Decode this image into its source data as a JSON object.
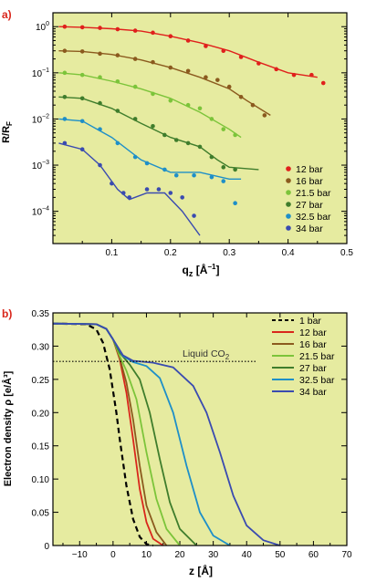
{
  "panels": [
    {
      "panel_label": "a)",
      "chart_data": {
        "type": "scatter",
        "xlabel": "q_z [Å⁻¹]",
        "ylabel": "R/R_F",
        "xlim": [
          0,
          0.5
        ],
        "ylim_log": [
          2e-05,
          2
        ],
        "yscale": "log",
        "x_ticks": [
          0.1,
          0.2,
          0.3,
          0.4,
          0.5
        ],
        "y_ticks": [
          "10^0",
          "10^-1",
          "10^-2",
          "10^-3",
          "10^-4"
        ],
        "y_tick_values": [
          1,
          0.1,
          0.01,
          0.001,
          0.0001
        ],
        "background": "#e6eba0",
        "legend_placement": "bottom-right",
        "series": [
          {
            "name": "12 bar",
            "color": "#e0201c",
            "points": [
              [
                0.02,
                1.0
              ],
              [
                0.05,
                0.97
              ],
              [
                0.08,
                0.94
              ],
              [
                0.11,
                0.88
              ],
              [
                0.14,
                0.82
              ],
              [
                0.17,
                0.74
              ],
              [
                0.2,
                0.62
              ],
              [
                0.23,
                0.5
              ],
              [
                0.26,
                0.38
              ],
              [
                0.29,
                0.3
              ],
              [
                0.32,
                0.22
              ],
              [
                0.35,
                0.16
              ],
              [
                0.38,
                0.12
              ],
              [
                0.41,
                0.09
              ],
              [
                0.44,
                0.09
              ],
              [
                0.46,
                0.06
              ]
            ],
            "fit": [
              [
                0.01,
                1.0
              ],
              [
                0.05,
                0.97
              ],
              [
                0.1,
                0.9
              ],
              [
                0.15,
                0.8
              ],
              [
                0.2,
                0.62
              ],
              [
                0.25,
                0.45
              ],
              [
                0.3,
                0.3
              ],
              [
                0.35,
                0.17
              ],
              [
                0.4,
                0.1
              ],
              [
                0.45,
                0.08
              ]
            ]
          },
          {
            "name": "16 bar",
            "color": "#8b5a1e",
            "points": [
              [
                0.02,
                0.3
              ],
              [
                0.05,
                0.29
              ],
              [
                0.08,
                0.26
              ],
              [
                0.11,
                0.24
              ],
              [
                0.14,
                0.2
              ],
              [
                0.17,
                0.17
              ],
              [
                0.2,
                0.13
              ],
              [
                0.23,
                0.11
              ],
              [
                0.26,
                0.08
              ],
              [
                0.28,
                0.07
              ],
              [
                0.3,
                0.05
              ],
              [
                0.32,
                0.03
              ],
              [
                0.34,
                0.02
              ],
              [
                0.36,
                0.012
              ]
            ],
            "fit": [
              [
                0.01,
                0.3
              ],
              [
                0.05,
                0.29
              ],
              [
                0.1,
                0.25
              ],
              [
                0.15,
                0.19
              ],
              [
                0.2,
                0.13
              ],
              [
                0.25,
                0.08
              ],
              [
                0.3,
                0.045
              ],
              [
                0.33,
                0.025
              ],
              [
                0.37,
                0.012
              ]
            ]
          },
          {
            "name": "21.5 bar",
            "color": "#7cc43a",
            "points": [
              [
                0.02,
                0.1
              ],
              [
                0.05,
                0.09
              ],
              [
                0.08,
                0.08
              ],
              [
                0.11,
                0.065
              ],
              [
                0.14,
                0.05
              ],
              [
                0.17,
                0.035
              ],
              [
                0.2,
                0.025
              ],
              [
                0.23,
                0.02
              ],
              [
                0.25,
                0.017
              ],
              [
                0.27,
                0.01
              ],
              [
                0.29,
                0.006
              ],
              [
                0.31,
                0.0045
              ]
            ],
            "fit": [
              [
                0.01,
                0.1
              ],
              [
                0.05,
                0.09
              ],
              [
                0.1,
                0.066
              ],
              [
                0.15,
                0.045
              ],
              [
                0.2,
                0.028
              ],
              [
                0.25,
                0.014
              ],
              [
                0.3,
                0.006
              ],
              [
                0.32,
                0.004
              ]
            ]
          },
          {
            "name": "27 bar",
            "color": "#3f7d2c",
            "points": [
              [
                0.02,
                0.03
              ],
              [
                0.05,
                0.028
              ],
              [
                0.08,
                0.022
              ],
              [
                0.11,
                0.015
              ],
              [
                0.14,
                0.01
              ],
              [
                0.17,
                0.007
              ],
              [
                0.19,
                0.0045
              ],
              [
                0.21,
                0.0035
              ],
              [
                0.23,
                0.003
              ],
              [
                0.25,
                0.0025
              ],
              [
                0.27,
                0.0015
              ],
              [
                0.29,
                0.0009
              ],
              [
                0.31,
                0.0008
              ]
            ],
            "fit": [
              [
                0.01,
                0.03
              ],
              [
                0.05,
                0.028
              ],
              [
                0.1,
                0.017
              ],
              [
                0.15,
                0.008
              ],
              [
                0.2,
                0.004
              ],
              [
                0.25,
                0.0025
              ],
              [
                0.28,
                0.0013
              ],
              [
                0.3,
                0.0009
              ],
              [
                0.35,
                0.0008
              ]
            ]
          },
          {
            "name": "32.5 bar",
            "color": "#1e8fc8",
            "points": [
              [
                0.02,
                0.01
              ],
              [
                0.05,
                0.009
              ],
              [
                0.08,
                0.006
              ],
              [
                0.11,
                0.003
              ],
              [
                0.14,
                0.0015
              ],
              [
                0.16,
                0.0011
              ],
              [
                0.19,
                0.0008
              ],
              [
                0.21,
                0.0006
              ],
              [
                0.24,
                0.0006
              ],
              [
                0.27,
                0.00055
              ],
              [
                0.29,
                0.00045
              ],
              [
                0.31,
                0.00015
              ]
            ],
            "fit": [
              [
                0.01,
                0.01
              ],
              [
                0.05,
                0.009
              ],
              [
                0.1,
                0.004
              ],
              [
                0.15,
                0.0013
              ],
              [
                0.2,
                0.0007
              ],
              [
                0.25,
                0.0007
              ],
              [
                0.3,
                0.0005
              ],
              [
                0.32,
                0.0005
              ]
            ]
          },
          {
            "name": "34 bar",
            "color": "#3a4bb0",
            "points": [
              [
                0.02,
                0.003
              ],
              [
                0.05,
                0.0022
              ],
              [
                0.08,
                0.001
              ],
              [
                0.1,
                0.0004
              ],
              [
                0.12,
                0.00025
              ],
              [
                0.13,
                0.0002
              ],
              [
                0.16,
                0.0003
              ],
              [
                0.18,
                0.0003
              ],
              [
                0.2,
                0.00025
              ],
              [
                0.22,
                0.0002
              ],
              [
                0.24,
                8e-05
              ]
            ],
            "fit": [
              [
                0.01,
                0.003
              ],
              [
                0.05,
                0.0022
              ],
              [
                0.08,
                0.001
              ],
              [
                0.11,
                0.0003
              ],
              [
                0.13,
                0.00018
              ],
              [
                0.16,
                0.00025
              ],
              [
                0.19,
                0.00025
              ],
              [
                0.22,
                0.0001
              ],
              [
                0.25,
                3e-05
              ]
            ]
          }
        ]
      }
    },
    {
      "panel_label": "b)",
      "chart_data": {
        "type": "line",
        "xlabel": "z [Å]",
        "ylabel": "Electron density ρ [e/Å³]",
        "xlim": [
          -18,
          70
        ],
        "ylim": [
          0,
          0.35
        ],
        "x_ticks": [
          -10,
          0,
          10,
          20,
          30,
          40,
          50,
          60,
          70
        ],
        "y_ticks": [
          0,
          0.05,
          0.1,
          0.15,
          0.2,
          0.25,
          0.3,
          0.35
        ],
        "background": "#e6eba0",
        "legend_placement": "top-right",
        "annotation": {
          "text": "Liquid CO",
          "subscript": "2",
          "y": 0.277
        },
        "series": [
          {
            "name": "1 bar",
            "color": "#000000",
            "dashed": true,
            "points": [
              [
                -18,
                0.334
              ],
              [
                -8,
                0.333
              ],
              [
                -5,
                0.325
              ],
              [
                -3,
                0.305
              ],
              [
                -1,
                0.265
              ],
              [
                1,
                0.2
              ],
              [
                2,
                0.16
              ],
              [
                4,
                0.09
              ],
              [
                6,
                0.04
              ],
              [
                8,
                0.013
              ],
              [
                10,
                0.002
              ],
              [
                12,
                0
              ]
            ]
          },
          {
            "name": "12 bar",
            "color": "#d9261c",
            "dashed": false,
            "points": [
              [
                -18,
                0.334
              ],
              [
                -5,
                0.333
              ],
              [
                -2,
                0.326
              ],
              [
                0,
                0.31
              ],
              [
                2,
                0.28
              ],
              [
                4,
                0.23
              ],
              [
                6,
                0.16
              ],
              [
                8,
                0.085
              ],
              [
                10,
                0.035
              ],
              [
                12,
                0.01
              ],
              [
                15,
                0
              ]
            ]
          },
          {
            "name": "16 bar",
            "color": "#8b5a1e",
            "dashed": false,
            "points": [
              [
                -18,
                0.334
              ],
              [
                -5,
                0.333
              ],
              [
                -2,
                0.326
              ],
              [
                0,
                0.31
              ],
              [
                2,
                0.282
              ],
              [
                4,
                0.245
              ],
              [
                6,
                0.19
              ],
              [
                8,
                0.12
              ],
              [
                10,
                0.06
              ],
              [
                13,
                0.02
              ],
              [
                16,
                0
              ]
            ]
          },
          {
            "name": "21.5 bar",
            "color": "#7cc43a",
            "dashed": false,
            "points": [
              [
                -18,
                0.334
              ],
              [
                -5,
                0.333
              ],
              [
                -2,
                0.326
              ],
              [
                0,
                0.31
              ],
              [
                2,
                0.285
              ],
              [
                4,
                0.263
              ],
              [
                7,
                0.22
              ],
              [
                10,
                0.14
              ],
              [
                13,
                0.07
              ],
              [
                16,
                0.025
              ],
              [
                20,
                0
              ]
            ]
          },
          {
            "name": "27 bar",
            "color": "#3f7d2c",
            "dashed": false,
            "points": [
              [
                -18,
                0.334
              ],
              [
                -5,
                0.333
              ],
              [
                -2,
                0.326
              ],
              [
                0,
                0.31
              ],
              [
                2,
                0.29
              ],
              [
                5,
                0.272
              ],
              [
                8,
                0.25
              ],
              [
                11,
                0.2
              ],
              [
                14,
                0.13
              ],
              [
                17,
                0.065
              ],
              [
                20,
                0.025
              ],
              [
                25,
                0
              ]
            ]
          },
          {
            "name": "32.5 bar",
            "color": "#1e8fc8",
            "dashed": false,
            "points": [
              [
                -18,
                0.334
              ],
              [
                -5,
                0.333
              ],
              [
                -2,
                0.326
              ],
              [
                0,
                0.31
              ],
              [
                3,
                0.285
              ],
              [
                6,
                0.276
              ],
              [
                10,
                0.27
              ],
              [
                14,
                0.252
              ],
              [
                18,
                0.2
              ],
              [
                22,
                0.12
              ],
              [
                26,
                0.05
              ],
              [
                30,
                0.015
              ],
              [
                35,
                0
              ]
            ]
          },
          {
            "name": "34 bar",
            "color": "#3a4bb0",
            "dashed": false,
            "points": [
              [
                -18,
                0.334
              ],
              [
                -5,
                0.333
              ],
              [
                -2,
                0.326
              ],
              [
                0,
                0.31
              ],
              [
                3,
                0.286
              ],
              [
                6,
                0.278
              ],
              [
                12,
                0.275
              ],
              [
                18,
                0.268
              ],
              [
                24,
                0.24
              ],
              [
                28,
                0.2
              ],
              [
                32,
                0.14
              ],
              [
                36,
                0.075
              ],
              [
                40,
                0.03
              ],
              [
                45,
                0.008
              ],
              [
                50,
                0
              ]
            ]
          }
        ]
      }
    }
  ]
}
